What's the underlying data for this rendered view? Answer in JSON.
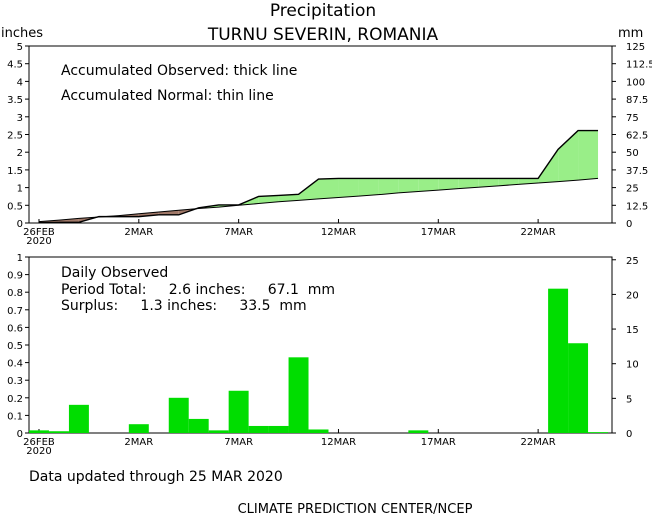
{
  "header": {
    "title": "Precipitation",
    "subtitle": "TURNU SEVERIN, ROMANIA"
  },
  "footer": {
    "updated": "Data updated through 25 MAR 2020",
    "credit": "CLIMATE PREDICTION CENTER/NCEP"
  },
  "colors": {
    "surplus": "#99ee88",
    "deficit": "#a07868",
    "bar": "#00dd00",
    "line": "#000000"
  },
  "chart_data": [
    {
      "type": "area",
      "left_unit": "inches",
      "right_unit": "mm",
      "ylim": [
        0,
        5
      ],
      "y_ticks_left": [
        "0",
        "0.5",
        "1",
        "1.5",
        "2",
        "2.5",
        "3",
        "3.5",
        "4",
        "4.5",
        "5"
      ],
      "y_ticks_right": [
        "0",
        "12.5",
        "25",
        "37.5",
        "50",
        "62.5",
        "75",
        "87.5",
        "100",
        "112.5",
        "125"
      ],
      "x_ticks": [
        {
          "day": 1,
          "label": "26FEB",
          "label2": "2020"
        },
        {
          "day": 6,
          "label": "2MAR",
          "label2": ""
        },
        {
          "day": 11,
          "label": "7MAR",
          "label2": ""
        },
        {
          "day": 16,
          "label": "12MAR",
          "label2": ""
        },
        {
          "day": 21,
          "label": "17MAR",
          "label2": ""
        },
        {
          "day": 26,
          "label": "22MAR",
          "label2": ""
        }
      ],
      "annotations": [
        "Accumulated Observed: thick line",
        "Accumulated Normal: thin line"
      ],
      "days": [
        1,
        2,
        3,
        4,
        5,
        6,
        7,
        8,
        9,
        10,
        11,
        12,
        13,
        14,
        15,
        16,
        17,
        18,
        19,
        20,
        21,
        22,
        23,
        24,
        25,
        26,
        27,
        28,
        29
      ],
      "series": [
        {
          "name": "Accumulated Observed",
          "values": [
            0.01,
            0.02,
            0.02,
            0.18,
            0.18,
            0.18,
            0.23,
            0.23,
            0.43,
            0.51,
            0.51,
            0.75,
            0.78,
            0.81,
            1.24,
            1.26,
            1.26,
            1.26,
            1.26,
            1.26,
            1.26,
            1.26,
            1.26,
            1.26,
            1.26,
            1.26,
            2.08,
            2.61,
            2.61
          ]
        },
        {
          "name": "Accumulated Normal",
          "values": [
            0.04,
            0.08,
            0.13,
            0.17,
            0.21,
            0.26,
            0.31,
            0.36,
            0.41,
            0.45,
            0.5,
            0.55,
            0.6,
            0.64,
            0.68,
            0.72,
            0.76,
            0.8,
            0.85,
            0.89,
            0.93,
            0.97,
            1.01,
            1.05,
            1.09,
            1.13,
            1.17,
            1.21,
            1.26
          ]
        }
      ]
    },
    {
      "type": "bar",
      "left_unit": "",
      "right_unit": "",
      "ylim": [
        0,
        1
      ],
      "y_ticks_left": [
        "0",
        "0.1",
        "0.2",
        "0.3",
        "0.4",
        "0.5",
        "0.6",
        "0.7",
        "0.8",
        "0.9",
        "1"
      ],
      "y_ticks_right": [
        "0",
        "5",
        "10",
        "15",
        "20",
        "25"
      ],
      "x_ticks": [
        {
          "day": 1,
          "label": "26FEB",
          "label2": "2020"
        },
        {
          "day": 6,
          "label": "2MAR",
          "label2": ""
        },
        {
          "day": 11,
          "label": "7MAR",
          "label2": ""
        },
        {
          "day": 16,
          "label": "12MAR",
          "label2": ""
        },
        {
          "day": 21,
          "label": "17MAR",
          "label2": ""
        },
        {
          "day": 26,
          "label": "22MAR",
          "label2": ""
        }
      ],
      "annotations": [
        "Daily Observed",
        "Period Total:     2.6 inches:     67.1  mm",
        "Surplus:     1.3 inches:     33.5  mm"
      ],
      "days": [
        1,
        2,
        3,
        4,
        5,
        6,
        7,
        8,
        9,
        10,
        11,
        12,
        13,
        14,
        15,
        16,
        17,
        18,
        19,
        20,
        21,
        22,
        23,
        24,
        25,
        26,
        27,
        28,
        29
      ],
      "values": [
        0.015,
        0.01,
        0.16,
        0,
        0,
        0.05,
        0,
        0.2,
        0.08,
        0.015,
        0.24,
        0.04,
        0.04,
        0.43,
        0.02,
        0,
        0,
        0,
        0,
        0.015,
        0,
        0,
        0,
        0,
        0,
        0,
        0.82,
        0.51,
        0.005
      ]
    }
  ]
}
